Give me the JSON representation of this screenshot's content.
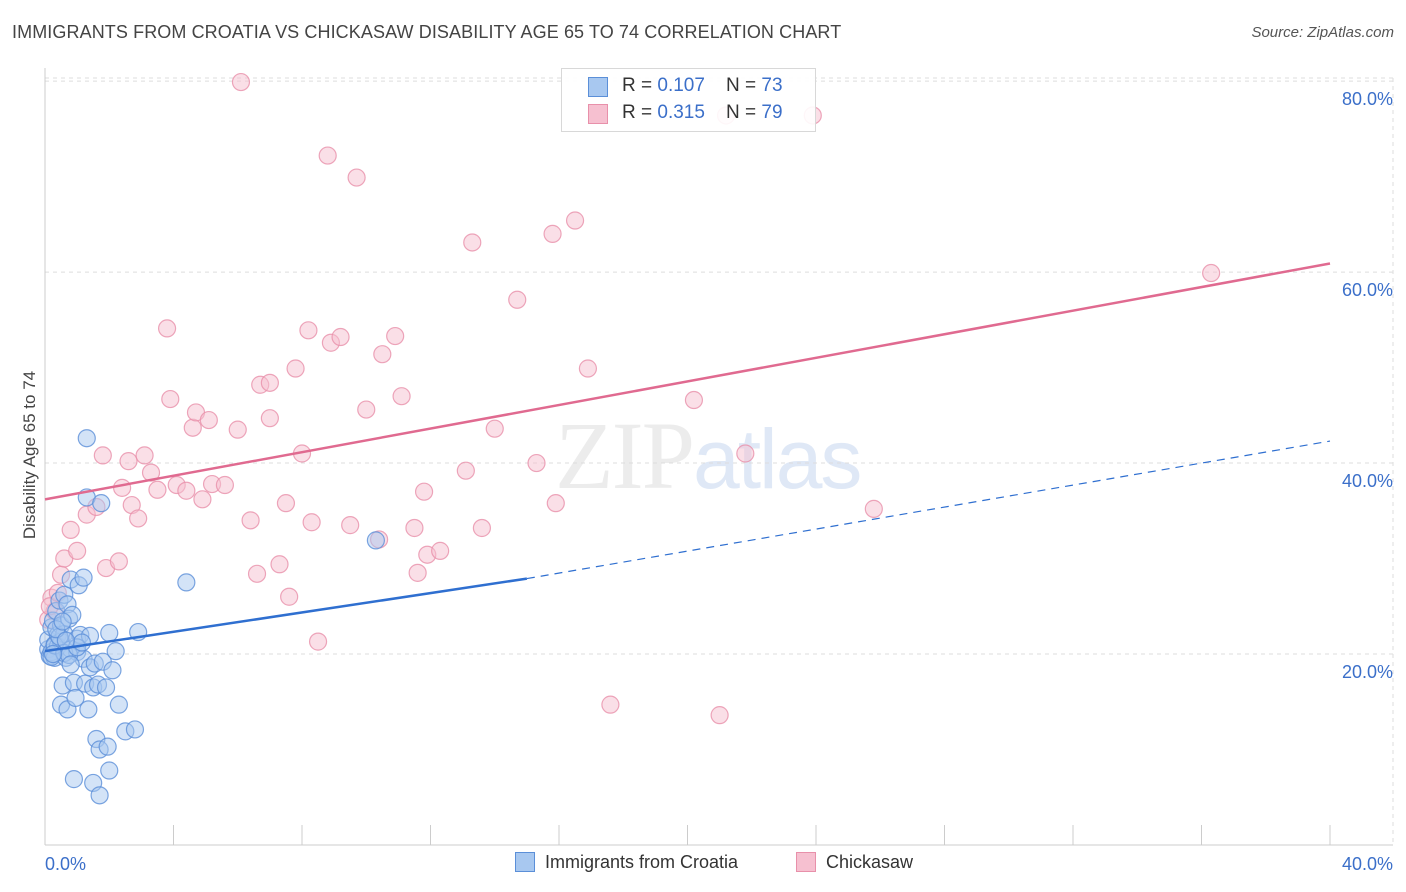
{
  "title": "IMMIGRANTS FROM CROATIA VS CHICKASAW DISABILITY AGE 65 TO 74 CORRELATION CHART",
  "source": "Source: ZipAtlas.com",
  "watermark": {
    "zip": "ZIP",
    "atlas": "atlas"
  },
  "legend": {
    "r_label": "R = ",
    "n_label": "N = ",
    "rows": [
      {
        "r": "0.107",
        "n": "73"
      },
      {
        "r": "0.315",
        "n": "79"
      }
    ]
  },
  "bottom_legend": [
    {
      "label": "Immigrants from Croatia"
    },
    {
      "label": "Chickasaw"
    }
  ],
  "colors": {
    "blue_fill": "#a8c8f0",
    "blue_stroke": "#5b8fd8",
    "blue_line": "#2f6fd0",
    "pink_fill": "#f6c0d0",
    "pink_stroke": "#e890aa",
    "pink_line": "#e06a90",
    "tick_text": "#3b6fc9",
    "grid": "#dddddd"
  },
  "chart_data": {
    "type": "scatter",
    "title": "IMMIGRANTS FROM CROATIA VS CHICKASAW DISABILITY AGE 65 TO 74 CORRELATION CHART",
    "xlabel": "",
    "ylabel": "Disability Age 65 to 74",
    "xlim": [
      0,
      40
    ],
    "ylim": [
      0,
      82
    ],
    "x_ticks_labeled": [
      "0.0%",
      "40.0%"
    ],
    "y_ticks": [
      {
        "value": 20,
        "label": "20.0%"
      },
      {
        "value": 40,
        "label": "40.0%"
      },
      {
        "value": 60,
        "label": "60.0%"
      },
      {
        "value": 80,
        "label": "80.0%"
      }
    ],
    "grid": true,
    "series": [
      {
        "name": "Immigrants from Croatia",
        "color": "blue",
        "trend": {
          "x0": 0,
          "y0": 20.3,
          "x1": 15,
          "y1": 27.9,
          "dashed_to_x": 40,
          "dashed_to_y": 42.3
        },
        "points": [
          [
            0.1,
            20.5
          ],
          [
            0.1,
            21.5
          ],
          [
            0.15,
            19.8
          ],
          [
            0.2,
            22.8
          ],
          [
            0.2,
            20.2
          ],
          [
            0.25,
            23.5
          ],
          [
            0.3,
            21.0
          ],
          [
            0.3,
            19.6
          ],
          [
            0.35,
            24.5
          ],
          [
            0.4,
            22.0
          ],
          [
            0.4,
            20.8
          ],
          [
            0.45,
            25.6
          ],
          [
            0.5,
            21.3
          ],
          [
            0.5,
            23.0
          ],
          [
            0.5,
            14.7
          ],
          [
            0.55,
            16.7
          ],
          [
            0.6,
            26.2
          ],
          [
            0.6,
            22.1
          ],
          [
            0.65,
            19.6
          ],
          [
            0.7,
            25.2
          ],
          [
            0.7,
            14.2
          ],
          [
            0.75,
            23.7
          ],
          [
            0.8,
            20.5
          ],
          [
            0.8,
            27.8
          ],
          [
            0.85,
            24.1
          ],
          [
            0.9,
            6.9
          ],
          [
            0.9,
            17.0
          ],
          [
            0.95,
            15.4
          ],
          [
            1.0,
            20.2
          ],
          [
            1.0,
            21.6
          ],
          [
            1.05,
            27.2
          ],
          [
            1.1,
            22.0
          ],
          [
            1.2,
            28.0
          ],
          [
            1.2,
            19.5
          ],
          [
            1.25,
            16.9
          ],
          [
            1.3,
            36.4
          ],
          [
            1.3,
            42.6
          ],
          [
            1.35,
            14.2
          ],
          [
            1.4,
            21.9
          ],
          [
            1.4,
            18.6
          ],
          [
            1.5,
            6.5
          ],
          [
            1.5,
            16.5
          ],
          [
            1.55,
            19.0
          ],
          [
            1.6,
            11.1
          ],
          [
            1.65,
            16.8
          ],
          [
            1.7,
            5.2
          ],
          [
            1.7,
            10.0
          ],
          [
            1.75,
            35.8
          ],
          [
            1.8,
            19.2
          ],
          [
            1.9,
            16.5
          ],
          [
            1.95,
            10.3
          ],
          [
            2.0,
            7.8
          ],
          [
            2.0,
            22.2
          ],
          [
            2.1,
            18.3
          ],
          [
            2.2,
            20.3
          ],
          [
            2.3,
            14.7
          ],
          [
            2.5,
            11.9
          ],
          [
            2.8,
            12.1
          ],
          [
            2.9,
            22.3
          ],
          [
            4.4,
            27.5
          ],
          [
            10.3,
            31.9
          ],
          [
            0.2,
            19.7
          ],
          [
            0.3,
            20.9
          ],
          [
            0.45,
            21.8
          ],
          [
            0.6,
            20.1
          ],
          [
            0.75,
            19.9
          ],
          [
            1.0,
            20.7
          ],
          [
            0.35,
            22.6
          ],
          [
            0.55,
            23.4
          ],
          [
            0.8,
            18.9
          ],
          [
            1.15,
            21.2
          ],
          [
            0.25,
            20.0
          ],
          [
            0.65,
            21.4
          ]
        ]
      },
      {
        "name": "Chickasaw",
        "color": "pink",
        "trend": {
          "x0": 0,
          "y0": 36.2,
          "x1": 40,
          "y1": 60.9
        },
        "points": [
          [
            0.1,
            23.6
          ],
          [
            0.2,
            25.9
          ],
          [
            0.3,
            24.5
          ],
          [
            0.5,
            28.3
          ],
          [
            0.6,
            30.0
          ],
          [
            0.8,
            33.0
          ],
          [
            1.0,
            30.8
          ],
          [
            1.3,
            34.6
          ],
          [
            1.6,
            35.4
          ],
          [
            1.8,
            40.8
          ],
          [
            1.9,
            29.0
          ],
          [
            2.3,
            29.7
          ],
          [
            2.4,
            37.4
          ],
          [
            2.6,
            40.2
          ],
          [
            2.7,
            35.6
          ],
          [
            2.9,
            34.2
          ],
          [
            3.1,
            40.8
          ],
          [
            3.3,
            39.0
          ],
          [
            3.5,
            37.2
          ],
          [
            3.8,
            54.1
          ],
          [
            3.9,
            46.7
          ],
          [
            4.1,
            37.7
          ],
          [
            4.4,
            37.1
          ],
          [
            4.6,
            43.7
          ],
          [
            4.7,
            45.3
          ],
          [
            4.9,
            36.2
          ],
          [
            5.1,
            44.5
          ],
          [
            5.2,
            37.8
          ],
          [
            5.6,
            37.7
          ],
          [
            6.0,
            43.5
          ],
          [
            6.1,
            79.9
          ],
          [
            6.4,
            34.0
          ],
          [
            6.6,
            28.4
          ],
          [
            6.7,
            48.2
          ],
          [
            7.0,
            48.4
          ],
          [
            7.0,
            44.7
          ],
          [
            7.3,
            29.4
          ],
          [
            7.5,
            35.8
          ],
          [
            7.6,
            26.0
          ],
          [
            7.8,
            49.9
          ],
          [
            8.0,
            41.0
          ],
          [
            8.2,
            53.9
          ],
          [
            8.3,
            33.8
          ],
          [
            8.5,
            21.3
          ],
          [
            8.8,
            72.2
          ],
          [
            8.9,
            52.6
          ],
          [
            9.2,
            53.2
          ],
          [
            9.5,
            33.5
          ],
          [
            9.7,
            69.9
          ],
          [
            10.0,
            45.6
          ],
          [
            10.4,
            32.0
          ],
          [
            10.5,
            51.4
          ],
          [
            10.9,
            53.3
          ],
          [
            11.1,
            47.0
          ],
          [
            11.5,
            33.2
          ],
          [
            11.6,
            28.5
          ],
          [
            11.8,
            37.0
          ],
          [
            11.9,
            30.4
          ],
          [
            12.3,
            30.8
          ],
          [
            13.1,
            39.2
          ],
          [
            13.3,
            63.1
          ],
          [
            13.6,
            33.2
          ],
          [
            14.0,
            43.6
          ],
          [
            14.7,
            57.1
          ],
          [
            15.3,
            40.0
          ],
          [
            15.8,
            64.0
          ],
          [
            15.9,
            35.8
          ],
          [
            16.5,
            65.4
          ],
          [
            16.9,
            49.9
          ],
          [
            17.6,
            14.7
          ],
          [
            20.2,
            46.6
          ],
          [
            21.0,
            13.6
          ],
          [
            21.2,
            76.4
          ],
          [
            21.8,
            41.0
          ],
          [
            23.9,
            76.4
          ],
          [
            25.8,
            35.2
          ],
          [
            36.3,
            59.9
          ],
          [
            0.15,
            25.0
          ],
          [
            0.4,
            26.4
          ]
        ]
      }
    ]
  }
}
